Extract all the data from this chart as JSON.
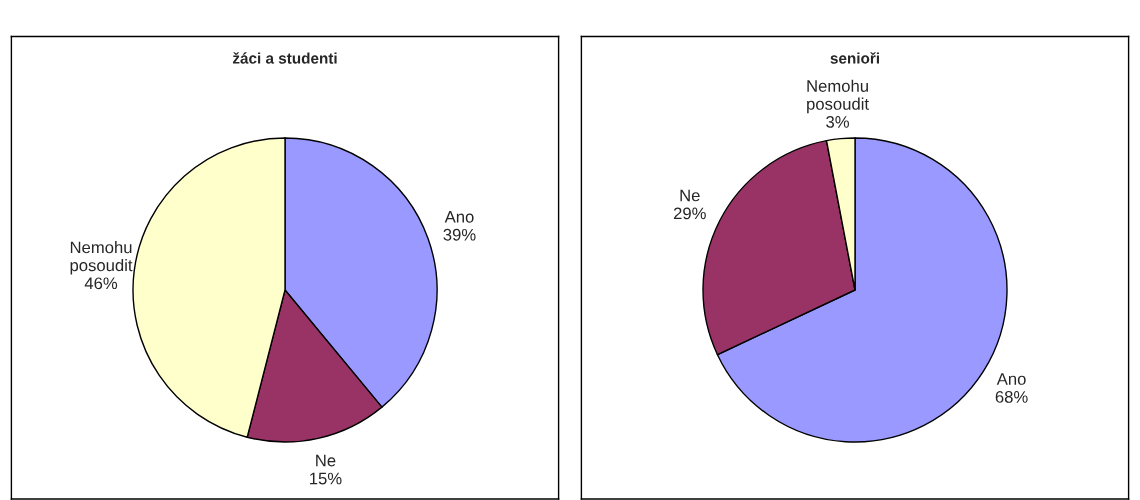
{
  "chart_data": [
    {
      "type": "pie",
      "title": "žáci a studenti",
      "categories": [
        "Ano",
        "Ne",
        "Nemohu posoudit"
      ],
      "values": [
        39,
        15,
        46
      ],
      "value_labels": [
        "39%",
        "15%",
        "46%"
      ],
      "colors": [
        "#9999ff",
        "#993366",
        "#ffffcc"
      ],
      "legend": false
    },
    {
      "type": "pie",
      "title": "senioři",
      "categories": [
        "Ano",
        "Ne",
        "Nemohu posoudit"
      ],
      "values": [
        68,
        29,
        3
      ],
      "value_labels": [
        "68%",
        "29%",
        "3%"
      ],
      "colors": [
        "#9999ff",
        "#993366",
        "#ffffcc"
      ],
      "legend": false
    }
  ]
}
